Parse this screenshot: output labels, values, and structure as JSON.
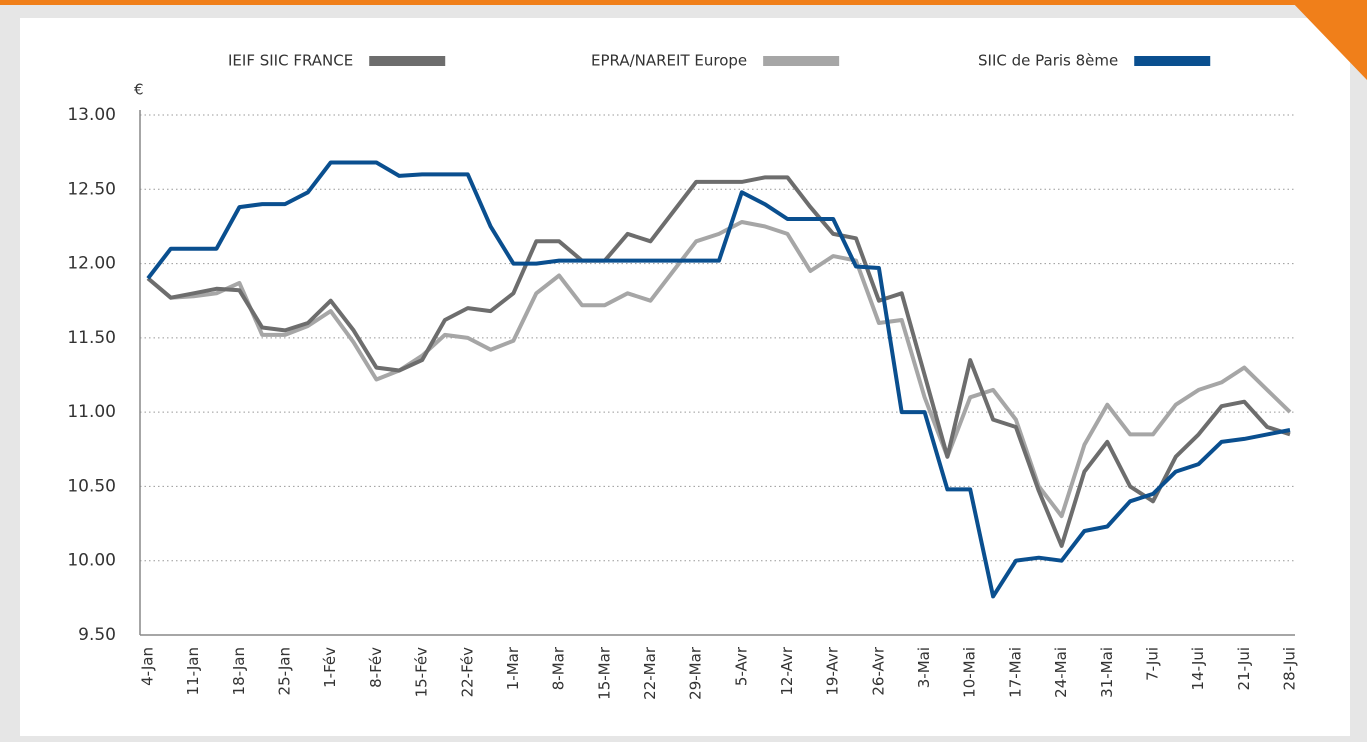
{
  "chart_data": {
    "type": "line",
    "y_unit_label": "€",
    "categories": [
      "4-Jan",
      null,
      "11-Jan",
      null,
      "18-Jan",
      null,
      "25-Jan",
      null,
      "1-Fév",
      null,
      "8-Fév",
      null,
      "15-Fév",
      null,
      "22-Fév",
      null,
      "1-Mar",
      null,
      "8-Mar",
      null,
      "15-Mar",
      null,
      "22-Mar",
      null,
      "29-Mar",
      null,
      "5-Avr",
      null,
      "12-Avr",
      null,
      "19-Avr",
      null,
      "26-Avr",
      null,
      "3-Mai",
      null,
      "10-Mai",
      null,
      "17-Mai",
      null,
      "24-Mai",
      null,
      "31-Mai",
      null,
      "7-Jui",
      null,
      "14-Jui",
      null,
      "21-Jui",
      null,
      "28-Jui"
    ],
    "series": [
      {
        "name": "IEIF SIIC FRANCE",
        "color": "#6d6d6d",
        "values": [
          11.9,
          11.77,
          11.8,
          11.83,
          11.82,
          11.57,
          11.55,
          11.6,
          11.75,
          11.55,
          11.3,
          11.28,
          11.35,
          11.62,
          11.7,
          11.68,
          11.8,
          12.15,
          12.15,
          12.02,
          12.02,
          12.2,
          12.15,
          12.35,
          12.55,
          12.55,
          12.55,
          12.58,
          12.58,
          12.38,
          12.2,
          12.17,
          11.75,
          11.8,
          11.25,
          10.7,
          11.35,
          10.95,
          10.9,
          10.47,
          10.1,
          10.6,
          10.8,
          10.5,
          10.4,
          10.7,
          10.85,
          11.04,
          11.07,
          10.9,
          10.85
        ]
      },
      {
        "name": "EPRA/NAREIT Europe",
        "color": "#a6a6a6",
        "values": [
          11.9,
          11.77,
          11.78,
          11.8,
          11.87,
          11.52,
          11.52,
          11.58,
          11.68,
          11.47,
          11.22,
          11.28,
          11.38,
          11.52,
          11.5,
          11.42,
          11.48,
          11.8,
          11.92,
          11.72,
          11.72,
          11.8,
          11.75,
          11.95,
          12.15,
          12.2,
          12.28,
          12.25,
          12.2,
          11.95,
          12.05,
          12.02,
          11.6,
          11.62,
          11.1,
          10.7,
          11.1,
          11.15,
          10.95,
          10.5,
          10.3,
          10.78,
          11.05,
          10.85,
          10.85,
          11.05,
          11.15,
          11.2,
          11.3,
          11.15,
          11.0
        ]
      },
      {
        "name": "SIIC de Paris 8ème",
        "color": "#0a4f8f",
        "values": [
          11.9,
          12.1,
          12.1,
          12.1,
          12.38,
          12.4,
          12.4,
          12.48,
          12.68,
          12.68,
          12.68,
          12.59,
          12.6,
          12.6,
          12.6,
          12.25,
          12.0,
          12.0,
          12.02,
          12.02,
          12.02,
          12.02,
          12.02,
          12.02,
          12.02,
          12.02,
          12.48,
          12.4,
          12.3,
          12.3,
          12.3,
          11.98,
          11.97,
          11.0,
          11.0,
          10.48,
          10.48,
          9.76,
          10.0,
          10.02,
          10.0,
          10.2,
          10.23,
          10.4,
          10.45,
          10.6,
          10.65,
          10.8,
          10.82,
          10.85,
          10.88
        ]
      }
    ],
    "ylim": [
      9.5,
      13.0
    ],
    "yticks": [
      {
        "value": 9.5,
        "label": "9.50"
      },
      {
        "value": 10,
        "label": "10.00"
      },
      {
        "value": 10.5,
        "label": "10.50"
      },
      {
        "value": 11,
        "label": "11.00"
      },
      {
        "value": 11.5,
        "label": "11.50"
      },
      {
        "value": 12,
        "label": "12.00"
      },
      {
        "value": 12.5,
        "label": "12.50"
      },
      {
        "value": 13,
        "label": "13.00"
      }
    ],
    "grid": true,
    "legend": "top"
  }
}
